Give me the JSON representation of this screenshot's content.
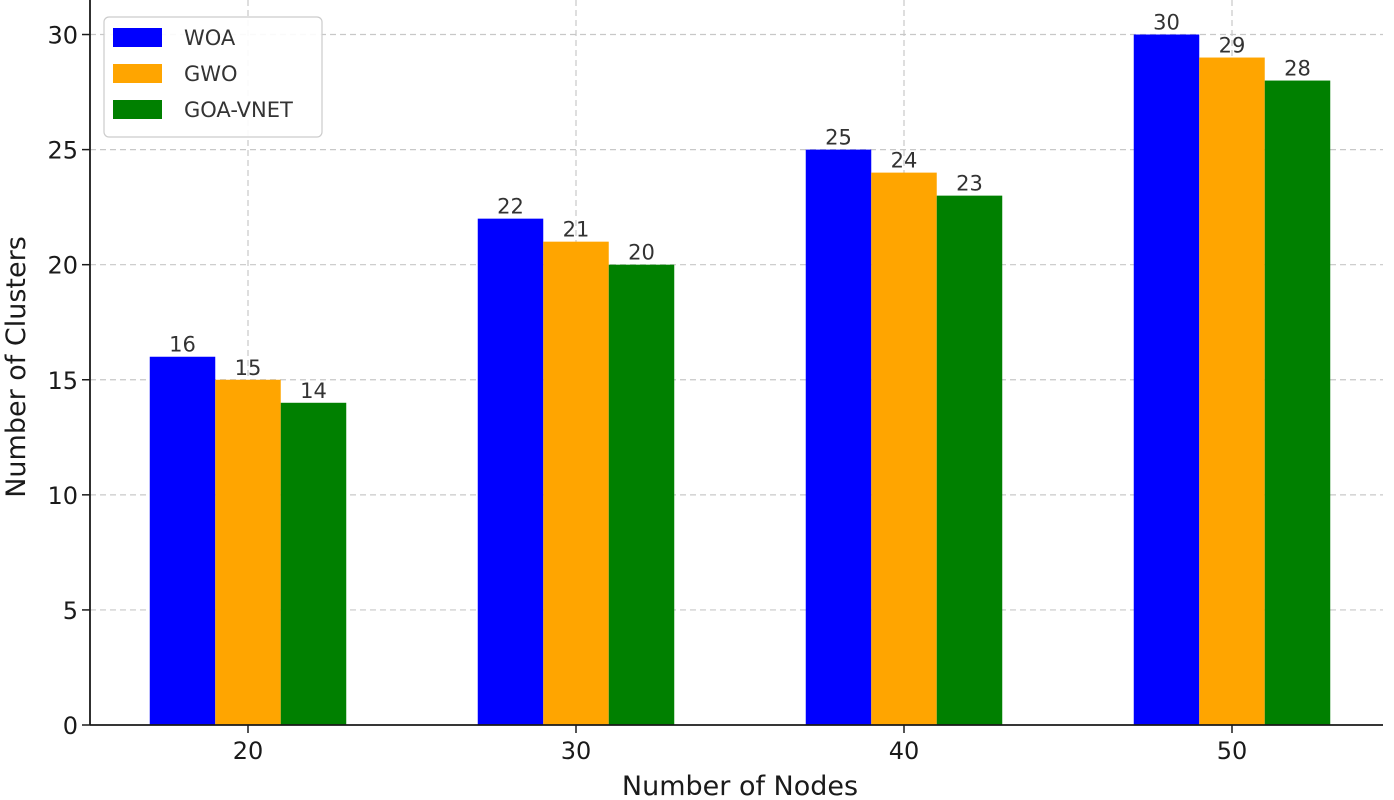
{
  "chart_data": {
    "type": "bar",
    "categories": [
      "20",
      "30",
      "40",
      "50"
    ],
    "series": [
      {
        "name": "WOA",
        "values": [
          16,
          22,
          25,
          30
        ],
        "color": "#0000ff"
      },
      {
        "name": "GWO",
        "values": [
          15,
          21,
          24,
          29
        ],
        "color": "#ffa500"
      },
      {
        "name": "GOA-VNET",
        "values": [
          14,
          20,
          23,
          28
        ],
        "color": "#008000"
      }
    ],
    "title": "",
    "xlabel": "Number of Nodes",
    "ylabel": "Number of Clusters",
    "ylim": [
      0,
      31.5
    ],
    "yticks": [
      0,
      5,
      10,
      15,
      20,
      25,
      30
    ],
    "grid": true,
    "legend_position": "upper-left",
    "data_labels": true
  }
}
